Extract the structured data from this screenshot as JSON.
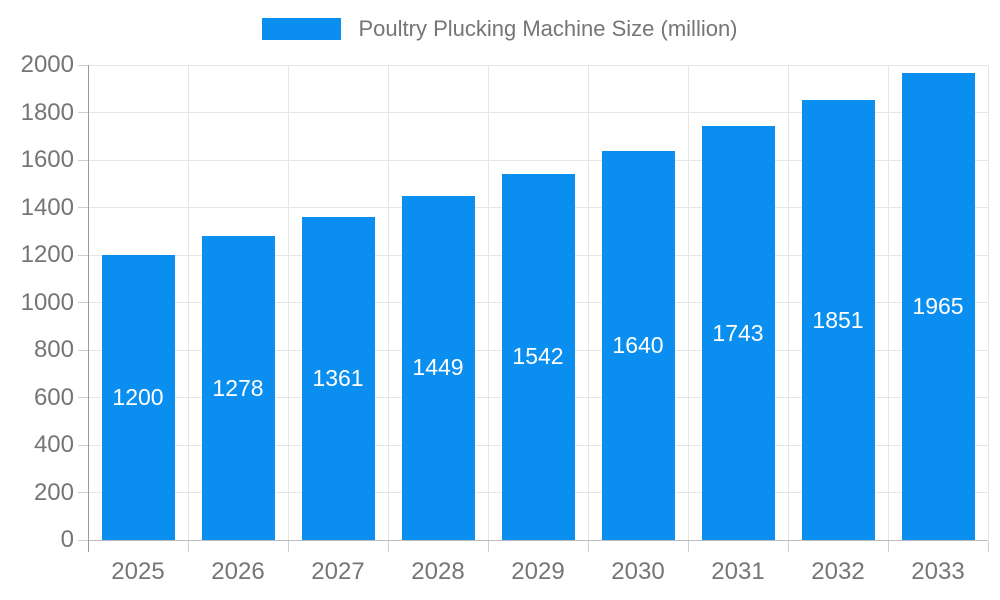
{
  "chart_data": {
    "type": "bar",
    "legend": "Poultry Plucking Machine Size (million)",
    "legend_position": "top",
    "categories": [
      "2025",
      "2026",
      "2027",
      "2028",
      "2029",
      "2030",
      "2031",
      "2032",
      "2033"
    ],
    "values": [
      1200,
      1278,
      1361,
      1449,
      1542,
      1640,
      1743,
      1851,
      1965
    ],
    "bar_labels": [
      "1200",
      "1278",
      "1361",
      "1449",
      "1542",
      "1640",
      "1743",
      "1851",
      "1965"
    ],
    "xlabel": "",
    "ylabel": "",
    "ylim": [
      0,
      2000
    ],
    "y_ticks": [
      0,
      200,
      400,
      600,
      800,
      1000,
      1200,
      1400,
      1600,
      1800,
      2000
    ],
    "grid": true,
    "colors": {
      "bar": "#0a8ff0",
      "axis_text": "#757575",
      "gridline": "#e6e6e6",
      "y_axis_line": "#999999",
      "x_axis_line": "#bdbdbd",
      "tick": "#cfcfcf",
      "bar_label_text": "#ffffff"
    }
  }
}
